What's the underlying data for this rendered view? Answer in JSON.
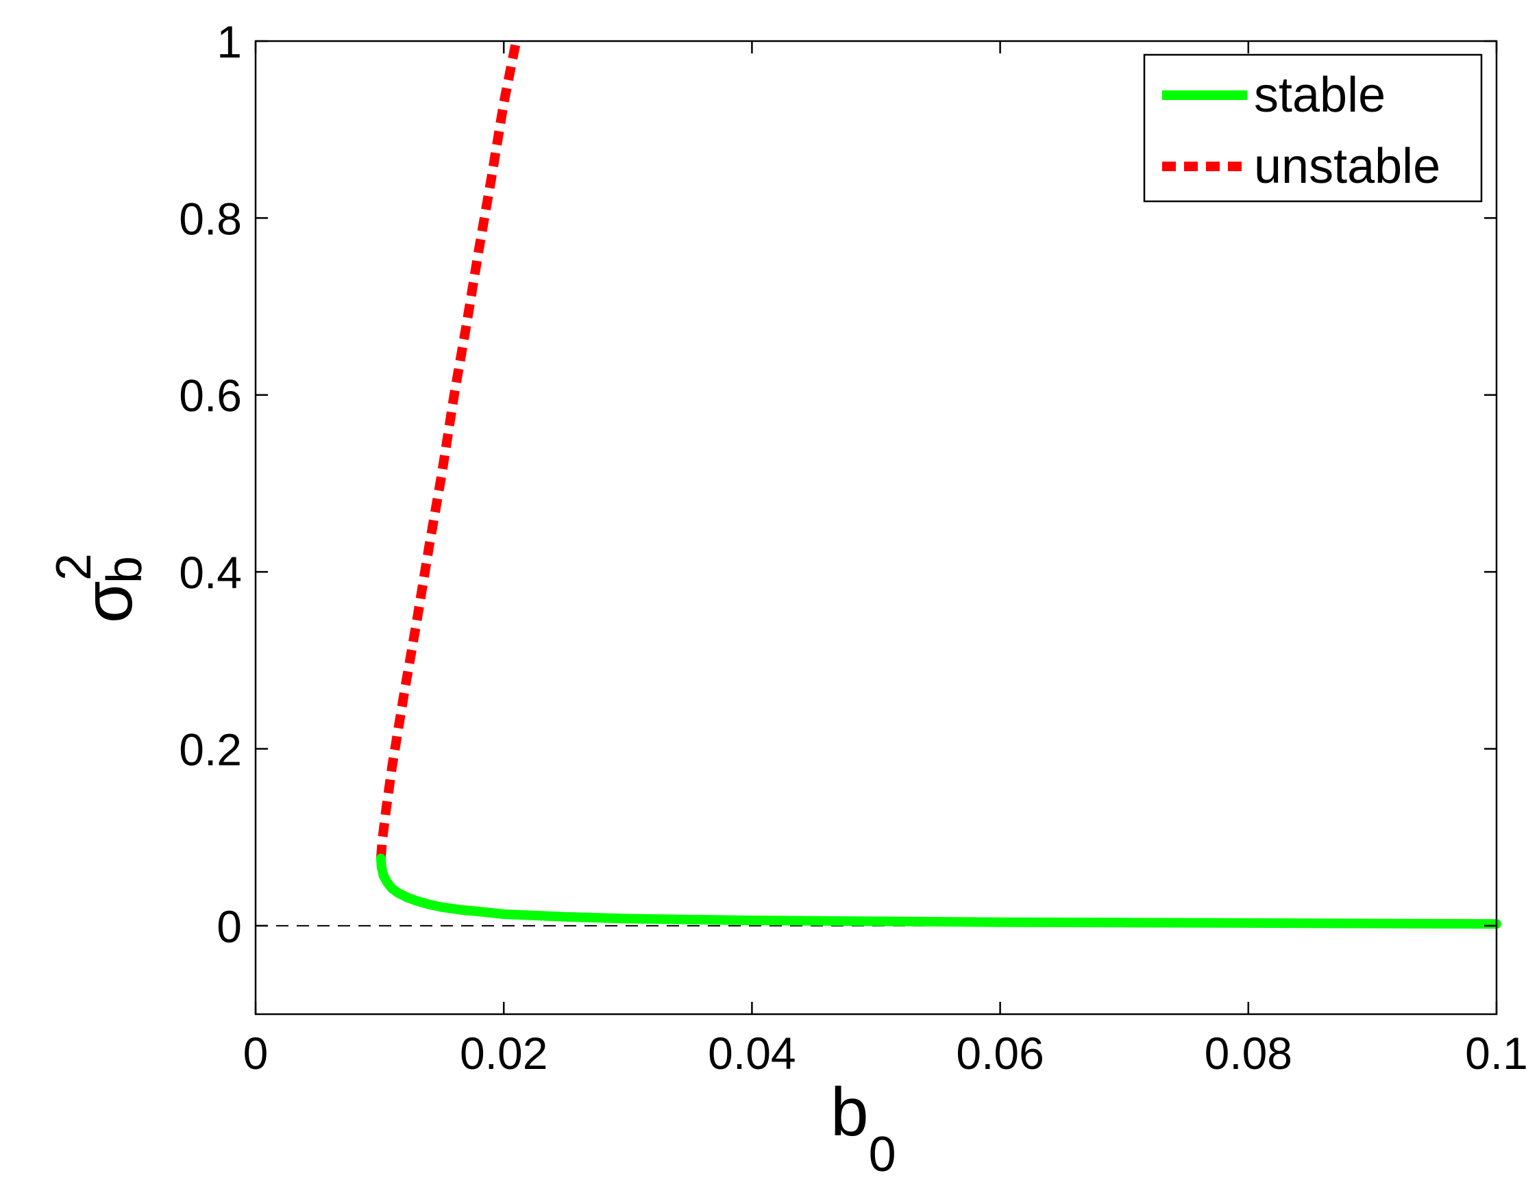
{
  "chart_data": {
    "type": "line",
    "xlabel": {
      "base": "b",
      "sub": "0"
    },
    "ylabel": {
      "base": "σ",
      "sub": "b",
      "sup": "2"
    },
    "xlim": [
      0,
      0.1
    ],
    "ylim": [
      -0.1,
      1
    ],
    "xticks": [
      {
        "value": 0,
        "label": "0"
      },
      {
        "value": 0.02,
        "label": "0.02"
      },
      {
        "value": 0.04,
        "label": "0.04"
      },
      {
        "value": 0.06,
        "label": "0.06"
      },
      {
        "value": 0.08,
        "label": "0.08"
      },
      {
        "value": 0.1,
        "label": "0.1"
      }
    ],
    "yticks": [
      {
        "value": 0,
        "label": "0"
      },
      {
        "value": 0.2,
        "label": "0.2"
      },
      {
        "value": 0.4,
        "label": "0.4"
      },
      {
        "value": 0.6,
        "label": "0.6"
      },
      {
        "value": 0.8,
        "label": "0.8"
      },
      {
        "value": 1,
        "label": "1"
      }
    ],
    "grid": false,
    "legend_position": "top-right",
    "series": [
      {
        "name": "stable",
        "color": "#00ff00",
        "style": "solid",
        "x": [
          0.0101,
          0.01015,
          0.0103,
          0.0106,
          0.011,
          0.0115,
          0.0122,
          0.013,
          0.014,
          0.015,
          0.0165,
          0.018,
          0.02,
          0.025,
          0.03,
          0.04,
          0.05,
          0.06,
          0.07,
          0.08,
          0.09,
          0.1
        ],
        "y": [
          0.076,
          0.066,
          0.057,
          0.049,
          0.042,
          0.037,
          0.032,
          0.028,
          0.024,
          0.021,
          0.018,
          0.016,
          0.013,
          0.01,
          0.008,
          0.006,
          0.005,
          0.004,
          0.0035,
          0.003,
          0.0025,
          0.002
        ]
      },
      {
        "name": "unstable",
        "color": "#ff0000",
        "style": "dashed",
        "x": [
          0.0101,
          0.0102,
          0.0105,
          0.011,
          0.012,
          0.013,
          0.014,
          0.015,
          0.016,
          0.017,
          0.018,
          0.019,
          0.02,
          0.021
        ],
        "y": [
          0.076,
          0.095,
          0.13,
          0.18,
          0.265,
          0.345,
          0.43,
          0.51,
          0.6,
          0.68,
          0.765,
          0.845,
          0.93,
          1.0
        ]
      }
    ],
    "reference_line": {
      "y": 0,
      "style": "dashed",
      "color": "#000000"
    }
  }
}
